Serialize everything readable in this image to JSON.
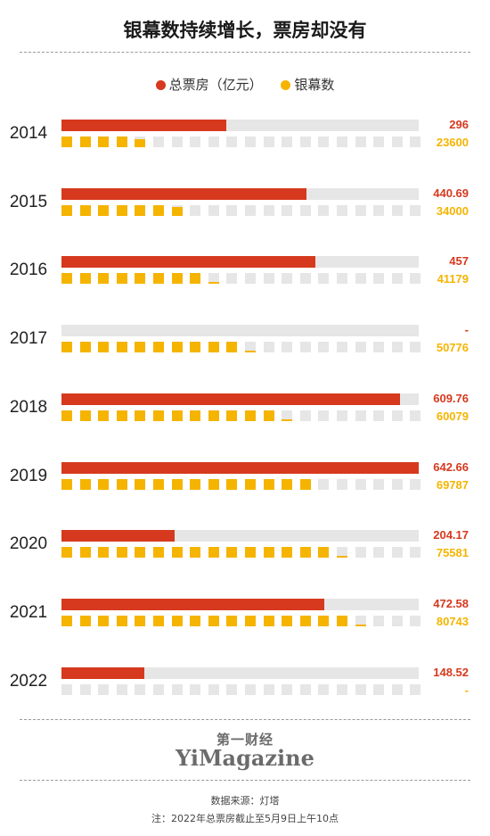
{
  "title": "银幕数持续增长，票房却没有",
  "legend": {
    "box_office": "总票房（亿元）",
    "screens": "银幕数"
  },
  "colors": {
    "box_office": "#d6391e",
    "screens": "#f5b400",
    "track": "#e6e6e6"
  },
  "chart_data": {
    "type": "bar",
    "categories": [
      "2014",
      "2015",
      "2016",
      "2017",
      "2018",
      "2019",
      "2020",
      "2021",
      "2022"
    ],
    "series": [
      {
        "name": "总票房（亿元）",
        "values": [
          296,
          440.69,
          457,
          null,
          609.76,
          642.66,
          204.17,
          472.58,
          148.52
        ]
      },
      {
        "name": "银幕数",
        "values": [
          23600,
          34000,
          41179,
          50776,
          60079,
          69787,
          75581,
          80743,
          null
        ]
      }
    ],
    "box_office_max": 642.66,
    "screens_squares_total": 20,
    "screens_per_square": 5000
  },
  "rows": [
    {
      "year": "2014",
      "box_office": "296",
      "screens": "23600"
    },
    {
      "year": "2015",
      "box_office": "440.69",
      "screens": "34000"
    },
    {
      "year": "2016",
      "box_office": "457",
      "screens": "41179"
    },
    {
      "year": "2017",
      "box_office": "-",
      "screens": "50776"
    },
    {
      "year": "2018",
      "box_office": "609.76",
      "screens": "60079"
    },
    {
      "year": "2019",
      "box_office": "642.66",
      "screens": "69787"
    },
    {
      "year": "2020",
      "box_office": "204.17",
      "screens": "75581"
    },
    {
      "year": "2021",
      "box_office": "472.58",
      "screens": "80743"
    },
    {
      "year": "2022",
      "box_office": "148.52",
      "screens": "-"
    }
  ],
  "logo": {
    "cn": "第一财经",
    "en": "YiMagazine"
  },
  "source": "数据来源：灯塔",
  "note": "注：2022年总票房截止至5月9日上午10点"
}
